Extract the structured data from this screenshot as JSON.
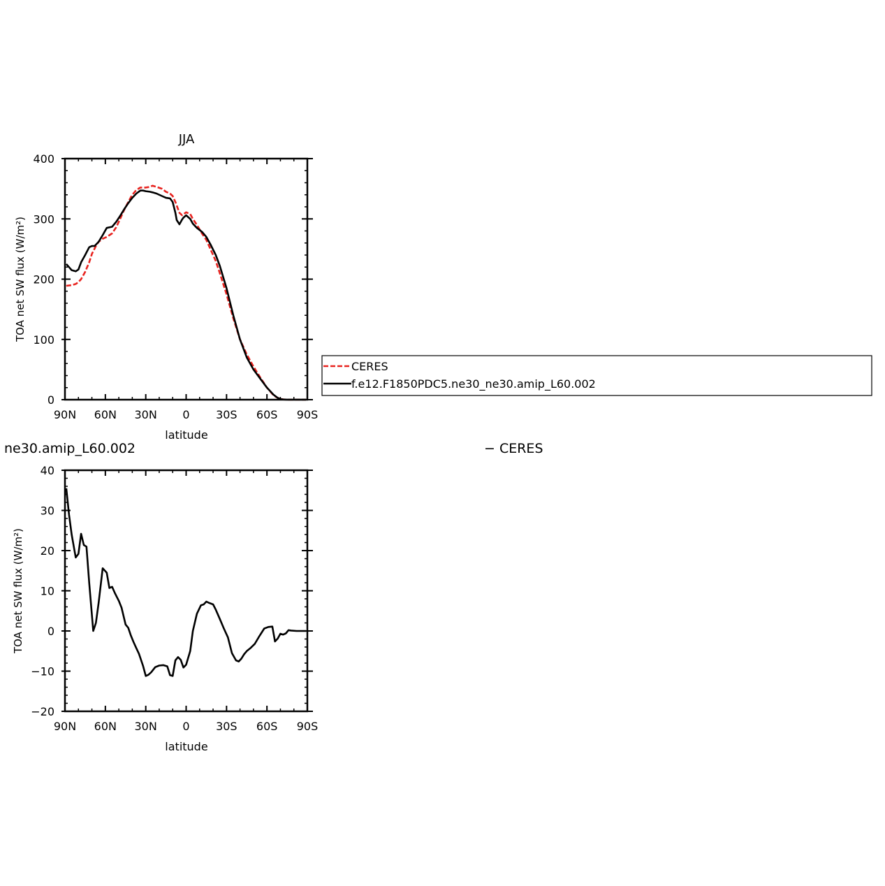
{
  "chart_data": [
    {
      "type": "line",
      "title": "JJA",
      "xlabel": "latitude",
      "ylabel": "TOA net SW flux (W/m²)",
      "x_ticks": [
        {
          "lat": 90,
          "label": "90N"
        },
        {
          "lat": 60,
          "label": "60N"
        },
        {
          "lat": 30,
          "label": "30N"
        },
        {
          "lat": 0,
          "label": "0"
        },
        {
          "lat": -30,
          "label": "30S"
        },
        {
          "lat": -60,
          "label": "60S"
        },
        {
          "lat": -90,
          "label": "90S"
        }
      ],
      "y_ticks": [
        0,
        100,
        200,
        300,
        400
      ],
      "xlim": [
        90,
        -90
      ],
      "ylim": [
        0,
        400
      ],
      "series": [
        {
          "name": "CERES",
          "color": "#e8231f",
          "dash": "dashed",
          "x": [
            89,
            85,
            82,
            80,
            78,
            75,
            72,
            70,
            67,
            65,
            62,
            59,
            55,
            52,
            49,
            46,
            43,
            40,
            37,
            34,
            30,
            27,
            25,
            22,
            18,
            15,
            12,
            10,
            8,
            5,
            3,
            0,
            -3,
            -5,
            -8,
            -12,
            -15,
            -18,
            -22,
            -25,
            -30,
            -35,
            -40,
            -45,
            -50,
            -55,
            -60,
            -65,
            -68,
            -70,
            -72,
            -75,
            -78,
            -80,
            -85,
            -89
          ],
          "y": [
            189,
            190,
            192,
            195,
            200,
            212,
            228,
            242,
            255,
            262,
            267,
            270,
            276,
            286,
            300,
            315,
            328,
            340,
            348,
            352,
            352,
            353,
            355,
            353,
            350,
            345,
            342,
            338,
            328,
            310,
            306,
            311,
            308,
            300,
            290,
            275,
            265,
            250,
            230,
            210,
            175,
            135,
            100,
            75,
            55,
            37,
            20,
            7,
            3,
            1.5,
            0.5,
            0,
            0,
            0,
            0,
            0
          ]
        },
        {
          "name": "f.e12.F1850PDC5.ne30_ne30.amip_L60.002",
          "color": "#000000",
          "dash": "solid",
          "x": [
            89,
            87,
            85,
            82,
            80,
            78,
            75,
            72,
            70,
            68,
            65,
            62,
            59,
            55,
            52,
            49,
            46,
            43,
            40,
            37,
            34,
            32,
            30,
            27,
            25,
            22,
            18,
            15,
            12,
            10,
            8,
            7,
            5,
            3,
            2,
            0,
            -3,
            -5,
            -8,
            -12,
            -15,
            -18,
            -22,
            -25,
            -30,
            -35,
            -40,
            -45,
            -50,
            -55,
            -60,
            -65,
            -68,
            -70,
            -72,
            -75,
            -78,
            -80,
            -85,
            -89
          ],
          "y": [
            225,
            220,
            215,
            213,
            216,
            228,
            240,
            253,
            255,
            255,
            262,
            273,
            285,
            287,
            295,
            305,
            316,
            326,
            335,
            342,
            347,
            347,
            346,
            345,
            344,
            342,
            338,
            335,
            334,
            328,
            310,
            298,
            291,
            299,
            302,
            306,
            300,
            292,
            285,
            278,
            270,
            258,
            240,
            222,
            185,
            140,
            100,
            70,
            50,
            35,
            20,
            8,
            3,
            1,
            0.3,
            0,
            0,
            0,
            0,
            0
          ]
        }
      ],
      "legend": {
        "placement": "right",
        "entries": [
          "CERES",
          "f.e12.F1850PDC5.ne30_ne30.amip_L60.002"
        ]
      }
    },
    {
      "type": "line",
      "title": "ne30.amip_L60.002",
      "subtitle": "− CERES",
      "xlabel": "latitude",
      "ylabel": "TOA net SW flux (W/m²)",
      "x_ticks": [
        {
          "lat": 90,
          "label": "90N"
        },
        {
          "lat": 60,
          "label": "60N"
        },
        {
          "lat": 30,
          "label": "30N"
        },
        {
          "lat": 0,
          "label": "0"
        },
        {
          "lat": -30,
          "label": "30S"
        },
        {
          "lat": -60,
          "label": "60S"
        },
        {
          "lat": -90,
          "label": "90S"
        }
      ],
      "y_ticks": [
        -20,
        -10,
        0,
        10,
        20,
        30,
        40
      ],
      "xlim": [
        90,
        -90
      ],
      "ylim": [
        -20,
        40
      ],
      "series": [
        {
          "color": "#000000",
          "dash": "solid",
          "x": [
            89,
            87,
            85,
            82,
            80,
            78,
            76,
            74,
            72,
            69,
            67,
            65,
            62,
            59,
            57,
            55,
            53,
            50,
            48,
            45,
            43,
            41,
            39,
            37,
            35,
            32,
            30,
            28,
            26,
            23,
            20,
            17,
            14,
            12,
            10,
            8,
            6,
            4,
            2,
            0,
            -3,
            -5,
            -8,
            -11,
            -13,
            -15,
            -17,
            -20,
            -22,
            -25,
            -28,
            -31,
            -34,
            -37,
            -39,
            -41,
            -43,
            -45,
            -48,
            -51,
            -54,
            -58,
            -61,
            -64,
            -66,
            -68,
            -70,
            -72,
            -74,
            -76,
            -78,
            -82,
            -85,
            -89
          ],
          "y": [
            35.5,
            29,
            24,
            18.3,
            19.2,
            24.2,
            21.4,
            21,
            12,
            0,
            2,
            7,
            15.6,
            14.5,
            10.7,
            11,
            9.5,
            7.5,
            5.8,
            1.6,
            0.8,
            -1.2,
            -2.8,
            -4.3,
            -5.7,
            -8.7,
            -11.2,
            -10.9,
            -10.3,
            -9.0,
            -8.6,
            -8.5,
            -8.8,
            -11.0,
            -11.2,
            -7.3,
            -6.5,
            -7.2,
            -9.1,
            -8.4,
            -5.0,
            0,
            4.3,
            6.4,
            6.6,
            7.3,
            7.0,
            6.6,
            5.3,
            3.0,
            0.6,
            -1.6,
            -5.5,
            -7.3,
            -7.6,
            -6.9,
            -5.8,
            -5.0,
            -4.2,
            -3.2,
            -1.5,
            0.6,
            1.0,
            1.1,
            -2.6,
            -1.9,
            -0.7,
            -0.9,
            -0.6,
            0.2,
            0.1,
            0,
            0,
            0
          ]
        }
      ]
    }
  ],
  "panel_top": {
    "title": "JJA",
    "xlabel": "latitude",
    "ylabel": "TOA net SW flux (W/m²)"
  },
  "panel_bottom": {
    "title": "ne30.amip_L60.002",
    "subtitle": "− CERES",
    "xlabel": "latitude",
    "ylabel": "TOA net SW flux (W/m²)"
  },
  "legend": {
    "entry_1": "CERES",
    "entry_2": "f.e12.F1850PDC5.ne30_ne30.amip_L60.002"
  }
}
